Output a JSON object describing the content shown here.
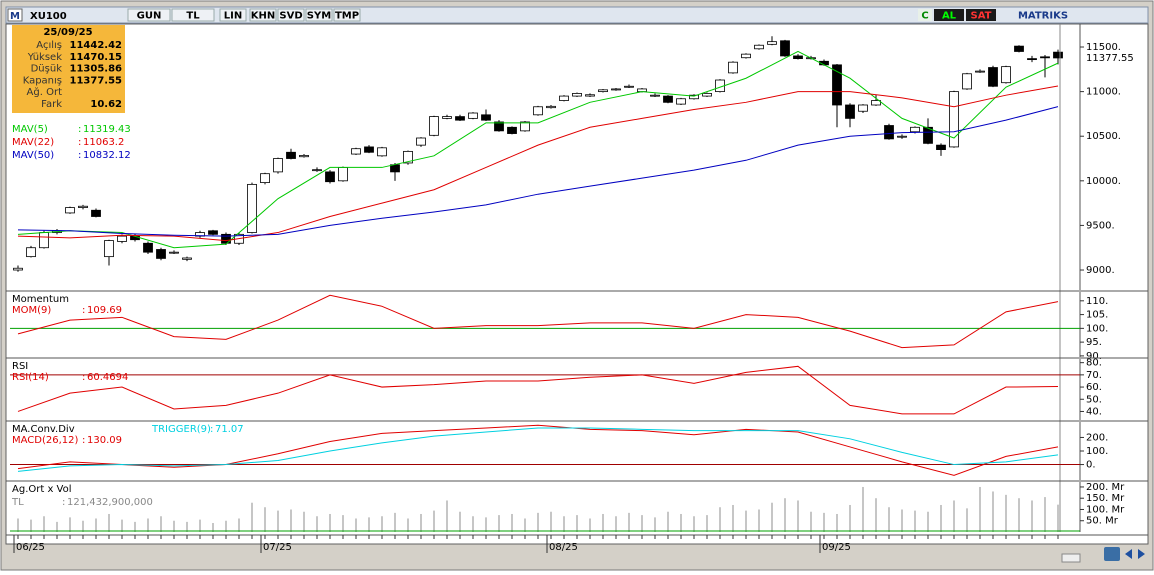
{
  "toolbar": {
    "logo": "M",
    "symbol": "XU100",
    "buttons": [
      "GUN",
      "TL",
      "LIN",
      "KHN",
      "SVD",
      "SYM",
      "TMP"
    ],
    "right_buttons": [
      "C",
      "AL",
      "SAT"
    ],
    "brand": "MATRIKS"
  },
  "info": {
    "date": "25/09/25",
    "labels": [
      "Açılış",
      "Yüksek",
      "Düşük",
      "Kapanış",
      "Ağ. Ort",
      "Fark"
    ],
    "fark": 10.62
  },
  "chart_data": [
    {
      "type": "candlestick",
      "ylim": [
        8776,
        11758
      ],
      "yticks": [
        {
          "value": 9000,
          "label": "9000."
        },
        {
          "value": 9500,
          "label": "9500."
        },
        {
          "value": 10000,
          "label": "10000."
        },
        {
          "value": 10500,
          "label": "10500."
        },
        {
          "value": 11000,
          "label": "11000."
        },
        {
          "value": 11500,
          "label": "11500."
        }
      ],
      "xticks": [
        {
          "value": 0,
          "label": "06/25"
        },
        {
          "value": 19,
          "label": "07/25"
        },
        {
          "value": 41,
          "label": "08/25"
        },
        {
          "value": 62,
          "label": "09/25"
        }
      ],
      "ohlc": [
        [
          9000,
          9050,
          8980,
          9020
        ],
        [
          9150,
          9270,
          9140,
          9250
        ],
        [
          9250,
          9440,
          9240,
          9420
        ],
        [
          9420,
          9460,
          9400,
          9440
        ],
        [
          9640,
          9710,
          9630,
          9700
        ],
        [
          9700,
          9730,
          9680,
          9715
        ],
        [
          9670,
          9690,
          9590,
          9600
        ],
        [
          9150,
          9340,
          9050,
          9330
        ],
        [
          9320,
          9400,
          9300,
          9380
        ],
        [
          9380,
          9410,
          9320,
          9340
        ],
        [
          9300,
          9320,
          9180,
          9200
        ],
        [
          9230,
          9250,
          9110,
          9130
        ],
        [
          9190,
          9220,
          9180,
          9200
        ],
        [
          9120,
          9150,
          9100,
          9135
        ],
        [
          9380,
          9440,
          9360,
          9420
        ],
        [
          9440,
          9450,
          9390,
          9400
        ],
        [
          9400,
          9420,
          9280,
          9300
        ],
        [
          9300,
          9420,
          9280,
          9400
        ],
        [
          9420,
          9980,
          9410,
          9960
        ],
        [
          9980,
          10090,
          9960,
          10080
        ],
        [
          10100,
          10260,
          10080,
          10250
        ],
        [
          10320,
          10360,
          10240,
          10250
        ],
        [
          10270,
          10300,
          10260,
          10285
        ],
        [
          10120,
          10150,
          10100,
          10125
        ],
        [
          10100,
          10120,
          9970,
          9990
        ],
        [
          10000,
          10160,
          9990,
          10150
        ],
        [
          10300,
          10370,
          10290,
          10360
        ],
        [
          10380,
          10400,
          10310,
          10320
        ],
        [
          10280,
          10380,
          10270,
          10370
        ],
        [
          10180,
          10200,
          10000,
          10100
        ],
        [
          10200,
          10340,
          10180,
          10330
        ],
        [
          10400,
          10490,
          10380,
          10480
        ],
        [
          10510,
          10730,
          10500,
          10720
        ],
        [
          10700,
          10740,
          10690,
          10720
        ],
        [
          10720,
          10740,
          10670,
          10680
        ],
        [
          10700,
          10770,
          10690,
          10760
        ],
        [
          10740,
          10800,
          10670,
          10680
        ],
        [
          10660,
          10680,
          10550,
          10560
        ],
        [
          10600,
          10610,
          10520,
          10530
        ],
        [
          10560,
          10670,
          10550,
          10660
        ],
        [
          10740,
          10840,
          10730,
          10830
        ],
        [
          10820,
          10850,
          10810,
          10835
        ],
        [
          10900,
          10960,
          10890,
          10950
        ],
        [
          10950,
          10990,
          10940,
          10980
        ],
        [
          10950,
          10980,
          10940,
          10965
        ],
        [
          11000,
          11030,
          10990,
          11020
        ],
        [
          11020,
          11040,
          11010,
          11030
        ],
        [
          11050,
          11080,
          11040,
          11060
        ],
        [
          11000,
          11040,
          10990,
          11030
        ],
        [
          10950,
          10980,
          10940,
          10960
        ],
        [
          10950,
          10960,
          10870,
          10880
        ],
        [
          10860,
          10930,
          10850,
          10920
        ],
        [
          10920,
          10970,
          10910,
          10960
        ],
        [
          10950,
          10990,
          10940,
          10980
        ],
        [
          11000,
          11140,
          10990,
          11130
        ],
        [
          11210,
          11340,
          11200,
          11330
        ],
        [
          11380,
          11430,
          11370,
          11420
        ],
        [
          11480,
          11530,
          11470,
          11520
        ],
        [
          11530,
          11620,
          11520,
          11560
        ],
        [
          11570,
          11580,
          11390,
          11400
        ],
        [
          11400,
          11420,
          11360,
          11370
        ],
        [
          11370,
          11400,
          11360,
          11380
        ],
        [
          11340,
          11360,
          11290,
          11300
        ],
        [
          11300,
          11310,
          10600,
          10850
        ],
        [
          10850,
          10870,
          10600,
          10700
        ],
        [
          10780,
          10860,
          10760,
          10850
        ],
        [
          10850,
          10960,
          10840,
          10900
        ],
        [
          10620,
          10640,
          10460,
          10470
        ],
        [
          10490,
          10520,
          10470,
          10500
        ],
        [
          10550,
          10610,
          10530,
          10600
        ],
        [
          10600,
          10700,
          10410,
          10420
        ],
        [
          10400,
          10420,
          10280,
          10350
        ],
        [
          10380,
          11010,
          10370,
          11000
        ],
        [
          11030,
          11210,
          11020,
          11200
        ],
        [
          11220,
          11250,
          11210,
          11230
        ],
        [
          11270,
          11290,
          11050,
          11060
        ],
        [
          11100,
          11290,
          11090,
          11280
        ],
        [
          11510,
          11520,
          11440,
          11450
        ],
        [
          11370,
          11400,
          11330,
          11360
        ],
        [
          11390,
          11410,
          11160,
          11380
        ],
        [
          11442.42,
          11470.15,
          11305.86,
          11377.55
        ]
      ],
      "series": [
        {
          "name": "MAV(5)",
          "color": "#00c800",
          "x": [
            0,
            4,
            8,
            12,
            16,
            20,
            24,
            28,
            32,
            36,
            40,
            44,
            48,
            52,
            56,
            60,
            64,
            68,
            72,
            76,
            80
          ],
          "values": [
            9400,
            9440,
            9420,
            9250,
            9290,
            9800,
            10150,
            10150,
            10280,
            10650,
            10650,
            10880,
            11000,
            10950,
            11150,
            11450,
            11150,
            10700,
            10480,
            11050,
            11319.43
          ]
        },
        {
          "name": "MAV(22)",
          "color": "#e00000",
          "x": [
            0,
            4,
            8,
            12,
            16,
            20,
            24,
            28,
            32,
            36,
            40,
            44,
            48,
            52,
            56,
            60,
            64,
            68,
            72,
            76,
            80
          ],
          "values": [
            9380,
            9360,
            9390,
            9380,
            9330,
            9420,
            9600,
            9750,
            9900,
            10150,
            10400,
            10600,
            10700,
            10800,
            10880,
            11000,
            11000,
            10930,
            10830,
            10960,
            11063.2
          ]
        },
        {
          "name": "MAV(50)",
          "color": "#0000c0",
          "x": [
            0,
            4,
            8,
            12,
            16,
            20,
            24,
            28,
            32,
            36,
            40,
            44,
            48,
            52,
            56,
            60,
            64,
            68,
            72,
            76,
            80
          ],
          "values": [
            9450,
            9440,
            9410,
            9390,
            9380,
            9400,
            9500,
            9580,
            9650,
            9730,
            9850,
            9940,
            10030,
            10120,
            10230,
            10400,
            10500,
            10540,
            10550,
            10680,
            10832.12
          ]
        }
      ]
    },
    {
      "type": "line",
      "title": "Momentum",
      "ylim": [
        89.6,
        113.2
      ],
      "yticks": [
        {
          "value": 90,
          "label": "90."
        },
        {
          "value": 95,
          "label": "95."
        },
        {
          "value": 100,
          "label": "100."
        },
        {
          "value": 105,
          "label": "105."
        },
        {
          "value": 110,
          "label": "110."
        }
      ],
      "hline": 100,
      "hline_color": "#00a000",
      "series": [
        {
          "name": "MOM(9)",
          "color": "#e00000",
          "x": [
            0,
            4,
            8,
            12,
            16,
            20,
            24,
            28,
            32,
            36,
            40,
            44,
            48,
            52,
            56,
            60,
            64,
            68,
            72,
            76,
            80
          ],
          "values": [
            98,
            103,
            104,
            97,
            96,
            103,
            112,
            108,
            100,
            101,
            101,
            102,
            102,
            100,
            105,
            104,
            99,
            93,
            94,
            106,
            109.69
          ]
        }
      ]
    },
    {
      "type": "line",
      "title": "RSI",
      "ylim": [
        33,
        83
      ],
      "yticks": [
        {
          "value": 40,
          "label": "40."
        },
        {
          "value": 50,
          "label": "50."
        },
        {
          "value": 60,
          "label": "60."
        },
        {
          "value": 70,
          "label": "70."
        },
        {
          "value": 80,
          "label": "80."
        }
      ],
      "hline": 70,
      "hline_color": "#a00000",
      "series": [
        {
          "name": "RSI(14)",
          "color": "#e00000",
          "x": [
            0,
            4,
            8,
            12,
            16,
            20,
            24,
            28,
            32,
            36,
            40,
            44,
            48,
            52,
            56,
            60,
            64,
            68,
            72,
            76,
            80
          ],
          "values": [
            40,
            55,
            60,
            42,
            45,
            55,
            70,
            60,
            62,
            65,
            65,
            68,
            70,
            63,
            72,
            77,
            45,
            38,
            38,
            60,
            60.4694
          ]
        }
      ]
    },
    {
      "type": "line",
      "title": "MA.Conv.Div",
      "ylim": [
        -114,
        314
      ],
      "yticks": [
        {
          "value": 0,
          "label": "0."
        },
        {
          "value": 100,
          "label": "100."
        },
        {
          "value": 200,
          "label": "200."
        }
      ],
      "hline": 0,
      "hline_color": "#a00000",
      "series": [
        {
          "name": "MACD(26,12)",
          "color": "#e00000",
          "x": [
            0,
            4,
            8,
            12,
            16,
            20,
            24,
            28,
            32,
            36,
            40,
            44,
            48,
            52,
            56,
            60,
            64,
            68,
            72,
            76,
            80
          ],
          "values": [
            -30,
            20,
            0,
            -20,
            0,
            80,
            170,
            230,
            250,
            270,
            290,
            260,
            250,
            220,
            260,
            240,
            130,
            20,
            -80,
            60,
            130.09
          ]
        },
        {
          "name": "TRIGGER(9)",
          "color": "#00d0e0",
          "x": [
            0,
            4,
            8,
            12,
            16,
            20,
            24,
            28,
            32,
            36,
            40,
            44,
            48,
            52,
            56,
            60,
            64,
            68,
            72,
            76,
            80
          ],
          "values": [
            -50,
            -10,
            0,
            -10,
            0,
            30,
            100,
            160,
            210,
            240,
            270,
            270,
            260,
            250,
            250,
            250,
            190,
            90,
            0,
            20,
            71.07
          ]
        }
      ]
    },
    {
      "type": "bar",
      "title": "Ag.Ort x Vol",
      "ylim": [
        0,
        222
      ],
      "yticks": [
        {
          "value": 50,
          "label": "50. Mr"
        },
        {
          "value": 100,
          "label": "100. Mr"
        },
        {
          "value": 150,
          "label": "150. Mr"
        },
        {
          "value": 200,
          "label": "200. Mr"
        }
      ],
      "series": [
        {
          "name": "TL",
          "color": "#a0a0a0",
          "values": [
            60,
            55,
            70,
            45,
            65,
            50,
            60,
            80,
            55,
            45,
            60,
            70,
            50,
            45,
            55,
            40,
            50,
            60,
            130,
            110,
            95,
            100,
            90,
            70,
            80,
            75,
            60,
            65,
            70,
            85,
            60,
            80,
            95,
            140,
            90,
            70,
            65,
            75,
            80,
            60,
            85,
            90,
            70,
            75,
            60,
            80,
            70,
            85,
            75,
            65,
            90,
            80,
            70,
            75,
            110,
            120,
            95,
            100,
            130,
            150,
            140,
            90,
            85,
            80,
            120,
            200,
            150,
            110,
            100,
            95,
            90,
            120,
            140,
            105,
            200,
            180,
            165,
            150,
            140,
            155,
            121.4329
          ],
          "value_labels": [
            null,
            null,
            null,
            null,
            null,
            null,
            null,
            null,
            null,
            null,
            null,
            null,
            null,
            null,
            null,
            null,
            null,
            null,
            null,
            null,
            null,
            null,
            null,
            null,
            null,
            null,
            null,
            null,
            null,
            null,
            null,
            null,
            null,
            null,
            null,
            null,
            null,
            null,
            null,
            null,
            null,
            null,
            null,
            null,
            null,
            null,
            null,
            null,
            null,
            null,
            null,
            null,
            null,
            null,
            null,
            null,
            null,
            null,
            null,
            null,
            null,
            null,
            null,
            null,
            null,
            null,
            null,
            null,
            null,
            null,
            null,
            null,
            null,
            null,
            null,
            null,
            null,
            null,
            null,
            null,
            "121,432,900,000"
          ]
        }
      ]
    }
  ]
}
